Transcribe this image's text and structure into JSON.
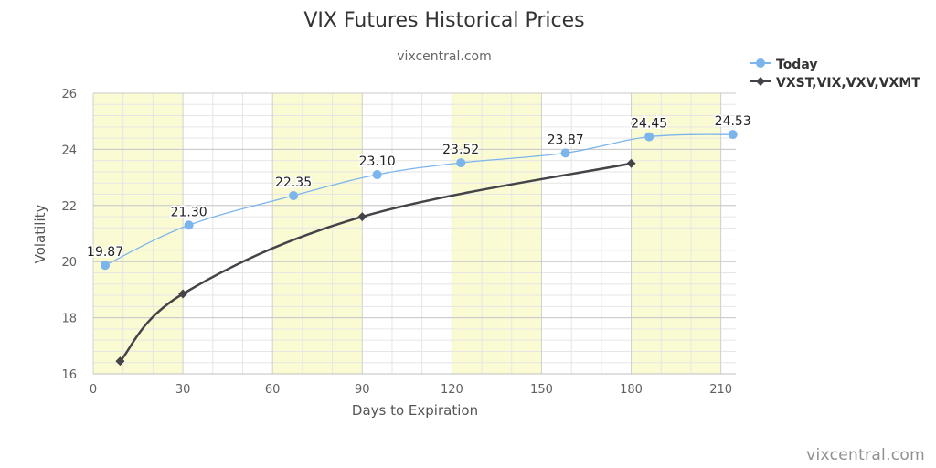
{
  "chart_data": {
    "type": "line",
    "title": "VIX Futures Historical Prices",
    "subtitle": "vixcentral.com",
    "xlabel": "Days to Expiration",
    "ylabel": "Volatility",
    "xlim": [
      0,
      215
    ],
    "ylim": [
      16,
      26
    ],
    "x_ticks": [
      0,
      30,
      60,
      90,
      120,
      150,
      180,
      210
    ],
    "y_ticks": [
      16,
      18,
      20,
      22,
      24,
      26
    ],
    "grid": true,
    "shaded_bands": [
      [
        0,
        30
      ],
      [
        60,
        90
      ],
      [
        120,
        150
      ],
      [
        180,
        210
      ]
    ],
    "band_color": "#fbfbd3",
    "legend_position": "top-right",
    "series": [
      {
        "name": "Today",
        "color": "#7cb5ec",
        "marker": "circle",
        "x": [
          4,
          32,
          67,
          95,
          123,
          158,
          186,
          214
        ],
        "y": [
          19.87,
          21.3,
          22.35,
          23.1,
          23.52,
          23.87,
          24.45,
          24.53
        ],
        "labels": [
          "19.87",
          "21.30",
          "22.35",
          "23.10",
          "23.52",
          "23.87",
          "24.45",
          "24.53"
        ]
      },
      {
        "name": "VXST,VIX,VXV,VXMT",
        "color": "#434348",
        "marker": "diamond",
        "x": [
          9,
          30,
          90,
          180
        ],
        "y": [
          16.45,
          18.85,
          21.6,
          23.5
        ]
      }
    ]
  },
  "credit": "vixcentral.com"
}
